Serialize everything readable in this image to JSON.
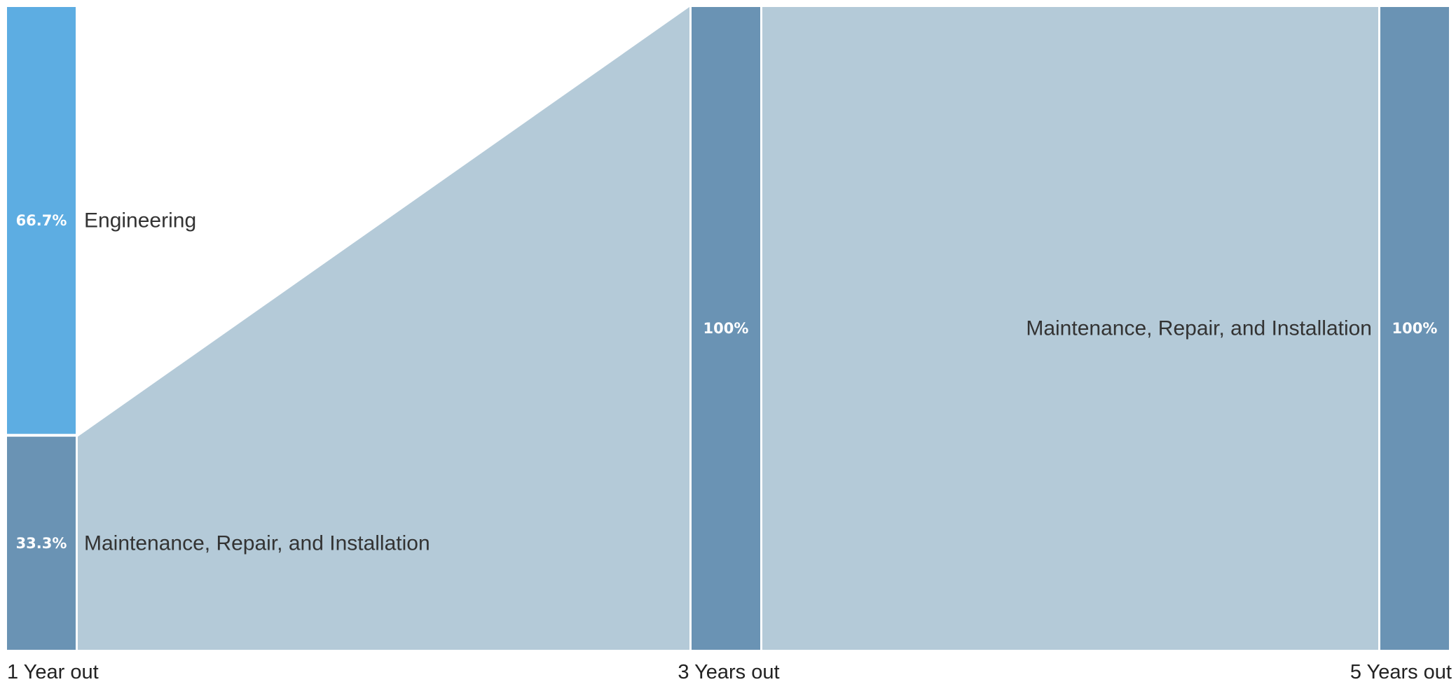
{
  "chart_data": {
    "type": "sankey",
    "stages": [
      "1 Year out",
      "3 Years out",
      "5 Years out"
    ],
    "nodes": [
      {
        "stage": 0,
        "category": "Engineering",
        "percent": 66.7,
        "value_label": "66.7%",
        "color": "#5DADE2"
      },
      {
        "stage": 0,
        "category": "Maintenance, Repair, and Installation",
        "percent": 33.3,
        "value_label": "33.3%",
        "color": "#6A93B4"
      },
      {
        "stage": 1,
        "category": "Maintenance, Repair, and Installation",
        "percent": 100,
        "value_label": "100%",
        "color": "#6A93B4"
      },
      {
        "stage": 2,
        "category": "Maintenance, Repair, and Installation",
        "percent": 100,
        "value_label": "100%",
        "color": "#6A93B4"
      }
    ],
    "node_labels": [
      {
        "node": 0,
        "text": "Engineering",
        "side": "right"
      },
      {
        "node": 1,
        "text": "Maintenance, Repair, and Installation",
        "side": "right"
      },
      {
        "node": 3,
        "text": "Maintenance, Repair, and Installation",
        "side": "left"
      }
    ],
    "flows": [
      {
        "from": 1,
        "to": 2,
        "percent": 33.3
      },
      {
        "from": 2,
        "to": 3,
        "percent": 100
      }
    ],
    "colors": {
      "flow": "#B4CAD8",
      "engineering": "#5DADE2",
      "maintenance": "#6A93B4"
    }
  }
}
